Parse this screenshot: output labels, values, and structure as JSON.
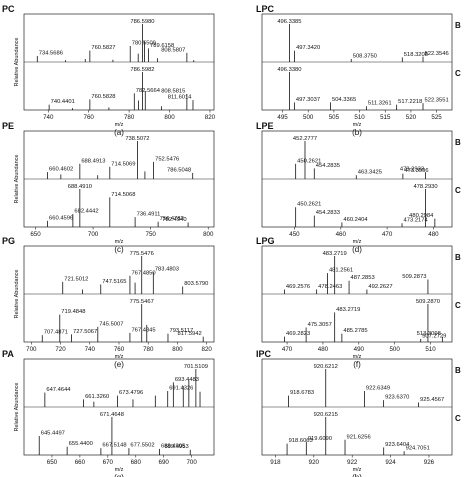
{
  "chart_data": [
    {
      "type": "bar",
      "id": "a",
      "title": "PC",
      "caption": "(a)",
      "xlabel": "m/z",
      "ylabel": "Relative Abundance",
      "xlim": [
        728,
        822
      ],
      "xticks": [
        740,
        760,
        780,
        800,
        820
      ],
      "traces": [
        {
          "tag": "",
          "peaks": [
            {
              "x": 734.5686,
              "y": 0.16,
              "label": "734.5686"
            },
            {
              "x": 748.5,
              "y": 0.05,
              "label": ""
            },
            {
              "x": 758.3,
              "y": 0.08,
              "label": ""
            },
            {
              "x": 760.5827,
              "y": 0.3,
              "label": "760.5827"
            },
            {
              "x": 772.0,
              "y": 0.06,
              "label": ""
            },
            {
              "x": 780.5509,
              "y": 0.42,
              "label": "780.5509"
            },
            {
              "x": 784.5,
              "y": 0.22,
              "label": ""
            },
            {
              "x": 786.598,
              "y": 1.0,
              "label": "786.5980"
            },
            {
              "x": 787.6,
              "y": 0.55,
              "label": ""
            },
            {
              "x": 789.6158,
              "y": 0.36,
              "label": "789.6158"
            },
            {
              "x": 794.0,
              "y": 0.1,
              "label": ""
            },
            {
              "x": 808.5807,
              "y": 0.24,
              "label": "808.5807"
            },
            {
              "x": 812.0,
              "y": 0.05,
              "label": ""
            }
          ]
        },
        {
          "tag": "",
          "peaks": [
            {
              "x": 740.4401,
              "y": 0.14,
              "label": "740.4401"
            },
            {
              "x": 752.0,
              "y": 0.05,
              "label": ""
            },
            {
              "x": 760.5828,
              "y": 0.28,
              "label": "760.5828"
            },
            {
              "x": 770.0,
              "y": 0.07,
              "label": ""
            },
            {
              "x": 782.5664,
              "y": 0.44,
              "label": "782.5664"
            },
            {
              "x": 784.6,
              "y": 0.25,
              "label": ""
            },
            {
              "x": 786.5982,
              "y": 1.0,
              "label": "786.5982"
            },
            {
              "x": 788.0,
              "y": 0.5,
              "label": ""
            },
            {
              "x": 796.0,
              "y": 0.1,
              "label": ""
            },
            {
              "x": 808.5815,
              "y": 0.42,
              "label": "808.5815"
            },
            {
              "x": 811.6014,
              "y": 0.26,
              "label": "811.6014"
            }
          ]
        }
      ]
    },
    {
      "type": "bar",
      "id": "b",
      "title": "LPC",
      "caption": "(b)",
      "xlabel": "m/z",
      "ylabel": "",
      "xlim": [
        491,
        528
      ],
      "xticks": [
        495,
        500,
        505,
        510,
        515,
        520,
        525
      ],
      "traces": [
        {
          "tag": "B",
          "peaks": [
            {
              "x": 496.3385,
              "y": 1.0,
              "label": "496.3385"
            },
            {
              "x": 497.342,
              "y": 0.3,
              "label": "497.3420"
            },
            {
              "x": 508.375,
              "y": 0.08,
              "label": "508.3750"
            },
            {
              "x": 518.3208,
              "y": 0.12,
              "label": "518.3208"
            },
            {
              "x": 522.3546,
              "y": 0.14,
              "label": "522.3546"
            }
          ]
        },
        {
          "tag": "C",
          "peaks": [
            {
              "x": 496.338,
              "y": 1.0,
              "label": "496.3380"
            },
            {
              "x": 497.3037,
              "y": 0.2,
              "label": "497.3037"
            },
            {
              "x": 504.3365,
              "y": 0.2,
              "label": "504.3365"
            },
            {
              "x": 511.3261,
              "y": 0.1,
              "label": "511.3261"
            },
            {
              "x": 517.2218,
              "y": 0.14,
              "label": "517.2218"
            },
            {
              "x": 522.3551,
              "y": 0.18,
              "label": "522.3551"
            }
          ]
        }
      ]
    },
    {
      "type": "bar",
      "id": "c",
      "title": "PE",
      "caption": "(c)",
      "xlabel": "m/z",
      "ylabel": "Relative Abundance",
      "xlim": [
        640,
        805
      ],
      "xticks": [
        650,
        700,
        750,
        800
      ],
      "traces": [
        {
          "tag": "",
          "peaks": [
            {
              "x": 660.4602,
              "y": 0.18,
              "label": "660.4602"
            },
            {
              "x": 672.0,
              "y": 0.12,
              "label": ""
            },
            {
              "x": 688.4913,
              "y": 0.4,
              "label": "688.4913"
            },
            {
              "x": 704.0,
              "y": 0.1,
              "label": ""
            },
            {
              "x": 714.5069,
              "y": 0.32,
              "label": "714.5069"
            },
            {
              "x": 738.5072,
              "y": 1.0,
              "label": "738.5072"
            },
            {
              "x": 745.0,
              "y": 0.2,
              "label": ""
            },
            {
              "x": 752.5476,
              "y": 0.45,
              "label": "752.5476"
            },
            {
              "x": 786.5048,
              "y": 0.16,
              "label": "786.5048"
            }
          ]
        },
        {
          "tag": "",
          "peaks": [
            {
              "x": 660.4596,
              "y": 0.16,
              "label": "660.4596"
            },
            {
              "x": 682.4442,
              "y": 0.34,
              "label": "682.4442"
            },
            {
              "x": 688.491,
              "y": 1.0,
              "label": "688.4910"
            },
            {
              "x": 714.5068,
              "y": 0.78,
              "label": "714.5068"
            },
            {
              "x": 736.4911,
              "y": 0.26,
              "label": "736.4911"
            },
            {
              "x": 756.4782,
              "y": 0.14,
              "label": "756.4782"
            },
            {
              "x": 782.494,
              "y": 0.12,
              "label": "782.4940"
            }
          ]
        }
      ]
    },
    {
      "type": "bar",
      "id": "d",
      "title": "LPE",
      "caption": "(d)",
      "xlabel": "m/z",
      "ylabel": "",
      "xlim": [
        443,
        484
      ],
      "xticks": [
        450,
        460,
        470,
        480
      ],
      "traces": [
        {
          "tag": "B",
          "peaks": [
            {
              "x": 450.2621,
              "y": 0.4,
              "label": "450.2621"
            },
            {
              "x": 452.2777,
              "y": 1.0,
              "label": "452.2777"
            },
            {
              "x": 454.2835,
              "y": 0.28,
              "label": "454.2835"
            },
            {
              "x": 463.3425,
              "y": 0.1,
              "label": "463.3425"
            },
            {
              "x": 473.3996,
              "y": 0.14,
              "label": "473.3996"
            },
            {
              "x": 478.2933,
              "y": 0.18,
              "label": "478.2933"
            }
          ]
        },
        {
          "tag": "C",
          "peaks": [
            {
              "x": 450.2621,
              "y": 0.52,
              "label": "450.2621"
            },
            {
              "x": 454.2833,
              "y": 0.3,
              "label": "454.2833"
            },
            {
              "x": 460.2404,
              "y": 0.12,
              "label": "460.2404"
            },
            {
              "x": 473.2174,
              "y": 0.1,
              "label": "473.2174"
            },
            {
              "x": 478.293,
              "y": 1.0,
              "label": "478.2930"
            },
            {
              "x": 480.2984,
              "y": 0.22,
              "label": "480.2984"
            }
          ]
        }
      ]
    },
    {
      "type": "bar",
      "id": "e",
      "title": "PG",
      "caption": "(e)",
      "xlabel": "m/z",
      "ylabel": "Relative Abundance",
      "xlim": [
        695,
        825
      ],
      "xticks": [
        700,
        720,
        740,
        760,
        780,
        800,
        820
      ],
      "traces": [
        {
          "tag": "",
          "peaks": [
            {
              "x": 721.5012,
              "y": 0.32,
              "label": "721.5012"
            },
            {
              "x": 735.0,
              "y": 0.12,
              "label": ""
            },
            {
              "x": 747.5165,
              "y": 0.25,
              "label": "747.5165"
            },
            {
              "x": 767.485,
              "y": 0.48,
              "label": "767.4850"
            },
            {
              "x": 771.0,
              "y": 0.3,
              "label": ""
            },
            {
              "x": 775.5476,
              "y": 1.0,
              "label": "775.5476"
            },
            {
              "x": 783.4803,
              "y": 0.58,
              "label": "783.4803"
            },
            {
              "x": 803.579,
              "y": 0.2,
              "label": "803.5790"
            }
          ]
        },
        {
          "tag": "",
          "peaks": [
            {
              "x": 707.4871,
              "y": 0.18,
              "label": "707.4871"
            },
            {
              "x": 719.4848,
              "y": 0.72,
              "label": "719.4848"
            },
            {
              "x": 727.5067,
              "y": 0.2,
              "label": "727.5067"
            },
            {
              "x": 745.5007,
              "y": 0.4,
              "label": "745.5007"
            },
            {
              "x": 767.4845,
              "y": 0.24,
              "label": "767.4845"
            },
            {
              "x": 775.5467,
              "y": 1.0,
              "label": "775.5467"
            },
            {
              "x": 779.0,
              "y": 0.45,
              "label": ""
            },
            {
              "x": 793.5117,
              "y": 0.22,
              "label": "793.5117"
            },
            {
              "x": 817.5942,
              "y": 0.14,
              "label": "817.5942"
            }
          ]
        }
      ]
    },
    {
      "type": "bar",
      "id": "f",
      "title": "LPG",
      "caption": "(f)",
      "xlabel": "m/z",
      "ylabel": "",
      "xlim": [
        463,
        516
      ],
      "xticks": [
        470,
        480,
        490,
        500,
        510
      ],
      "traces": [
        {
          "tag": "B",
          "peaks": [
            {
              "x": 469.2576,
              "y": 0.12,
              "label": "469.2576"
            },
            {
              "x": 478.2463,
              "y": 0.12,
              "label": "478.2463"
            },
            {
              "x": 481.2561,
              "y": 0.55,
              "label": "481.2561"
            },
            {
              "x": 483.2719,
              "y": 1.0,
              "label": "483.2719"
            },
            {
              "x": 487.2853,
              "y": 0.35,
              "label": "487.2853"
            },
            {
              "x": 492.2627,
              "y": 0.12,
              "label": "492.2627"
            },
            {
              "x": 509.2873,
              "y": 0.38,
              "label": "509.2873"
            }
          ]
        },
        {
          "tag": "C",
          "peaks": [
            {
              "x": 469.2823,
              "y": 0.14,
              "label": "469.2823"
            },
            {
              "x": 475.3057,
              "y": 0.38,
              "label": "475.3057"
            },
            {
              "x": 483.2719,
              "y": 0.78,
              "label": "483.2719"
            },
            {
              "x": 485.2785,
              "y": 0.22,
              "label": "485.2785"
            },
            {
              "x": 507.2729,
              "y": 0.08,
              "label": "507.2729"
            },
            {
              "x": 509.287,
              "y": 1.0,
              "label": "509.2870"
            },
            {
              "x": 513.3098,
              "y": 0.14,
              "label": "513.3098"
            }
          ]
        }
      ]
    },
    {
      "type": "bar",
      "id": "g",
      "title": "PA",
      "caption": "(g)",
      "xlabel": "m/z",
      "ylabel": "Relative Abundance",
      "xlim": [
        640,
        708
      ],
      "xticks": [
        650,
        660,
        670,
        680,
        690,
        700
      ],
      "traces": [
        {
          "tag": "",
          "peaks": [
            {
              "x": 647.4644,
              "y": 0.38,
              "label": "647.4644"
            },
            {
              "x": 661.326,
              "y": 0.2,
              "label": "661.3260"
            },
            {
              "x": 665.0,
              "y": 0.14,
              "label": ""
            },
            {
              "x": 673.4796,
              "y": 0.3,
              "label": "673.4796"
            },
            {
              "x": 679.0,
              "y": 0.2,
              "label": ""
            },
            {
              "x": 687.0,
              "y": 0.3,
              "label": ""
            },
            {
              "x": 691.4326,
              "y": 0.42,
              "label": "691.4326"
            },
            {
              "x": 693.4483,
              "y": 0.65,
              "label": "693.4483"
            },
            {
              "x": 697.0,
              "y": 0.55,
              "label": ""
            },
            {
              "x": 699.0,
              "y": 0.7,
              "label": ""
            },
            {
              "x": 701.5109,
              "y": 1.0,
              "label": "701.5109"
            },
            {
              "x": 703.0,
              "y": 0.4,
              "label": ""
            }
          ]
        },
        {
          "tag": "",
          "peaks": [
            {
              "x": 645.4497,
              "y": 0.5,
              "label": "645.4497"
            },
            {
              "x": 655.44,
              "y": 0.22,
              "label": "655.4400"
            },
            {
              "x": 667.5148,
              "y": 0.18,
              "label": "667.5148"
            },
            {
              "x": 671.4648,
              "y": 1.0,
              "label": "671.4648"
            },
            {
              "x": 677.5502,
              "y": 0.18,
              "label": "677.5502"
            },
            {
              "x": 688.4905,
              "y": 0.16,
              "label": "688.4905"
            },
            {
              "x": 699.4953,
              "y": 0.14,
              "label": "699.4953"
            }
          ]
        }
      ]
    },
    {
      "type": "bar",
      "id": "h",
      "title": "IPC",
      "caption": "(h)",
      "xlabel": "m/z",
      "ylabel": "",
      "xlim": [
        917.3,
        927.2
      ],
      "xticks": [
        918,
        920,
        922,
        924,
        926
      ],
      "traces": [
        {
          "tag": "B",
          "peaks": [
            {
              "x": 918.6783,
              "y": 0.3,
              "label": "918.6783"
            },
            {
              "x": 920.6212,
              "y": 1.0,
              "label": "920.6212"
            },
            {
              "x": 922.6349,
              "y": 0.42,
              "label": "922.6349"
            },
            {
              "x": 923.637,
              "y": 0.18,
              "label": "923.6370"
            },
            {
              "x": 925.4567,
              "y": 0.12,
              "label": "925.4567"
            }
          ]
        },
        {
          "tag": "C",
          "peaks": [
            {
              "x": 918.6063,
              "y": 0.3,
              "label": "918.6063"
            },
            {
              "x": 919.609,
              "y": 0.35,
              "label": "919.6090"
            },
            {
              "x": 920.6215,
              "y": 1.0,
              "label": "920.6215"
            },
            {
              "x": 921.6256,
              "y": 0.4,
              "label": "921.6256"
            },
            {
              "x": 923.6404,
              "y": 0.2,
              "label": "923.6404"
            },
            {
              "x": 924.7051,
              "y": 0.1,
              "label": "924.7051"
            }
          ]
        }
      ]
    }
  ]
}
